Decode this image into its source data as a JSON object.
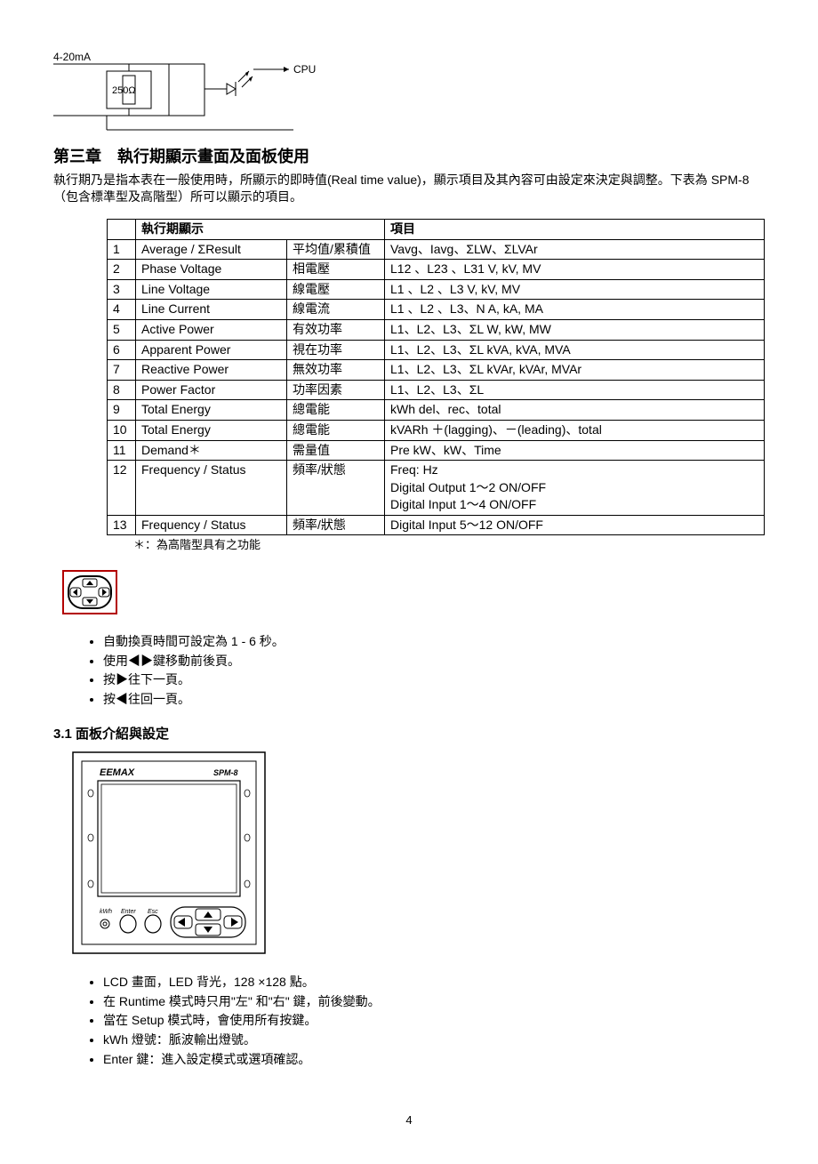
{
  "circuit": {
    "label_420mA": "4-20mA",
    "label_resistor": "250Ω",
    "label_cpu": "CPU"
  },
  "chapter": {
    "title": "第三章　執行期顯示畫面及面板使用",
    "intro": "執行期乃是指本表在一般使用時，所顯示的即時值(Real time value)，顯示項目及其內容可由設定來決定與調整。下表為 SPM-8（包含標準型及高階型）所可以顯示的項目。"
  },
  "table": {
    "headers": {
      "display": "執行期顯示",
      "items": "項目"
    },
    "rows": [
      {
        "n": "1",
        "en": "Average / ΣResult",
        "zh": "平均值/累積值",
        "item": "Vavg、Iavg、ΣLW、ΣLVAr"
      },
      {
        "n": "2",
        "en": "Phase Voltage",
        "zh": "相電壓",
        "item": "L12  、L23 、L31     V, kV, MV"
      },
      {
        "n": "3",
        "en": "Line Voltage",
        "zh": "線電壓",
        "item": "L1  、L2 、L3          V, kV, MV"
      },
      {
        "n": "4",
        "en": "Line Current",
        "zh": "線電流",
        "item": "L1  、L2 、L3、N     A, kA, MA"
      },
      {
        "n": "5",
        "en": "Active Power",
        "zh": "有效功率",
        "item": "L1、L2、L3、ΣL       W, kW, MW"
      },
      {
        "n": "6",
        "en": "Apparent Power",
        "zh": "視在功率",
        "item": "L1、L2、L3、ΣL       kVA, kVA, MVA"
      },
      {
        "n": "7",
        "en": "Reactive Power",
        "zh": "無效功率",
        "item": "L1、L2、L3、ΣL       kVAr, kVAr, MVAr"
      },
      {
        "n": "8",
        "en": "Power Factor",
        "zh": "功率因素",
        "item": "L1、L2、L3、ΣL"
      },
      {
        "n": "9",
        "en": "Total Energy",
        "zh": "總電能",
        "item": "kWh del、rec、total"
      },
      {
        "n": "10",
        "en": "Total Energy",
        "zh": "總電能",
        "item": "kVARh ＋(lagging)、－(leading)、total"
      },
      {
        "n": "11",
        "en": "Demand＊",
        "zh": "需量值",
        "item": "Pre kW、kW、Time"
      },
      {
        "n": "12",
        "en": "Frequency / Status",
        "zh": "頻率/狀態",
        "item": "Freq:   Hz\nDigital Output 1～2 ON/OFF\nDigital Input 1～4   ON/OFF"
      },
      {
        "n": "13",
        "en": "Frequency / Status",
        "zh": "頻率/狀態",
        "item": "Digital Input 5～12 ON/OFF"
      }
    ],
    "footnote": "＊：為高階型具有之功能"
  },
  "bullets1": [
    "自動換頁時間可設定為 1 - 6 秒。",
    "使用◀▶鍵移動前後頁。",
    "按▶往下一頁。",
    "按◀往回一頁。"
  ],
  "section31": {
    "title": "3.1 面板介紹與設定"
  },
  "panel": {
    "brand": "EEMAX",
    "model": "SPM-8",
    "btn_kwh": "kWh",
    "btn_enter": "Enter",
    "btn_esc": "Esc"
  },
  "bullets2": [
    "LCD 畫面，LED 背光，128 ×128 點。",
    "在 Runtime 模式時只用\"左\" 和\"右\" 鍵，前後變動。",
    "當在 Setup  模式時，會使用所有按鍵。",
    "kWh 燈號：脈波輸出燈號。",
    "Enter 鍵：進入設定模式或選項確認。"
  ],
  "page_number": "4"
}
